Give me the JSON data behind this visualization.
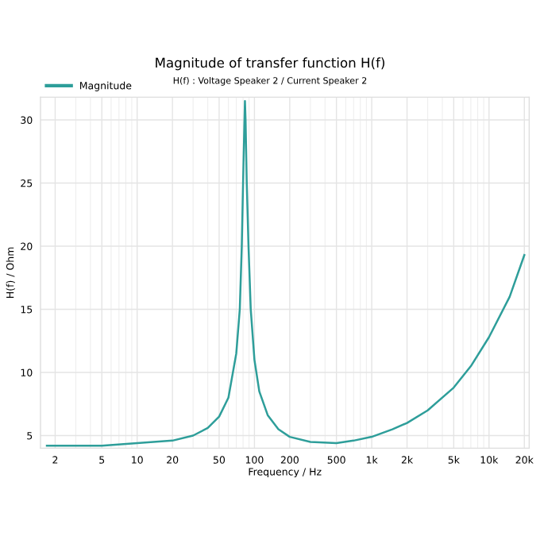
{
  "chart_data": {
    "type": "line",
    "title": "Magnitude of transfer function H(f)",
    "subtitle": "H(f) : Voltage Speaker 2 / Current Speaker 2",
    "xlabel": "Frequency / Hz",
    "ylabel": "H(f) / Ohm",
    "x": [
      1.7,
      5,
      10,
      20,
      30,
      40,
      50,
      60,
      70,
      75,
      78,
      80,
      82,
      83,
      84,
      86,
      89,
      93,
      100,
      110,
      130,
      160,
      200,
      300,
      500,
      700,
      1000,
      1500,
      2000,
      3000,
      5000,
      7000,
      10000,
      15000,
      20000
    ],
    "series": [
      {
        "name": "Magnitude",
        "color": "#2e9e9a",
        "values": [
          4.2,
          4.2,
          4.4,
          4.6,
          5.0,
          5.6,
          6.5,
          8.0,
          11.5,
          15,
          20,
          25,
          29.5,
          31.5,
          30,
          25,
          20,
          15,
          11,
          8.5,
          6.6,
          5.5,
          4.9,
          4.5,
          4.4,
          4.6,
          4.9,
          5.5,
          6.0,
          7.0,
          8.8,
          10.5,
          12.8,
          16,
          19.3
        ]
      }
    ],
    "log": "x",
    "xlim": [
      1.5,
      22000
    ],
    "ylim": [
      4,
      31.8
    ],
    "xticks": [
      2,
      5,
      10,
      20,
      50,
      100,
      200,
      500,
      {
        "value": 1000,
        "label": "1k"
      },
      {
        "value": 2000,
        "label": "2k"
      },
      {
        "value": 5000,
        "label": "5k"
      },
      {
        "value": 10000,
        "label": "10k"
      },
      {
        "value": 20000,
        "label": "20k"
      }
    ],
    "yticks": [
      5,
      10,
      15,
      20,
      25,
      30
    ],
    "grid": true,
    "legend": "top left",
    "marker": "none",
    "line_style": "solid"
  }
}
